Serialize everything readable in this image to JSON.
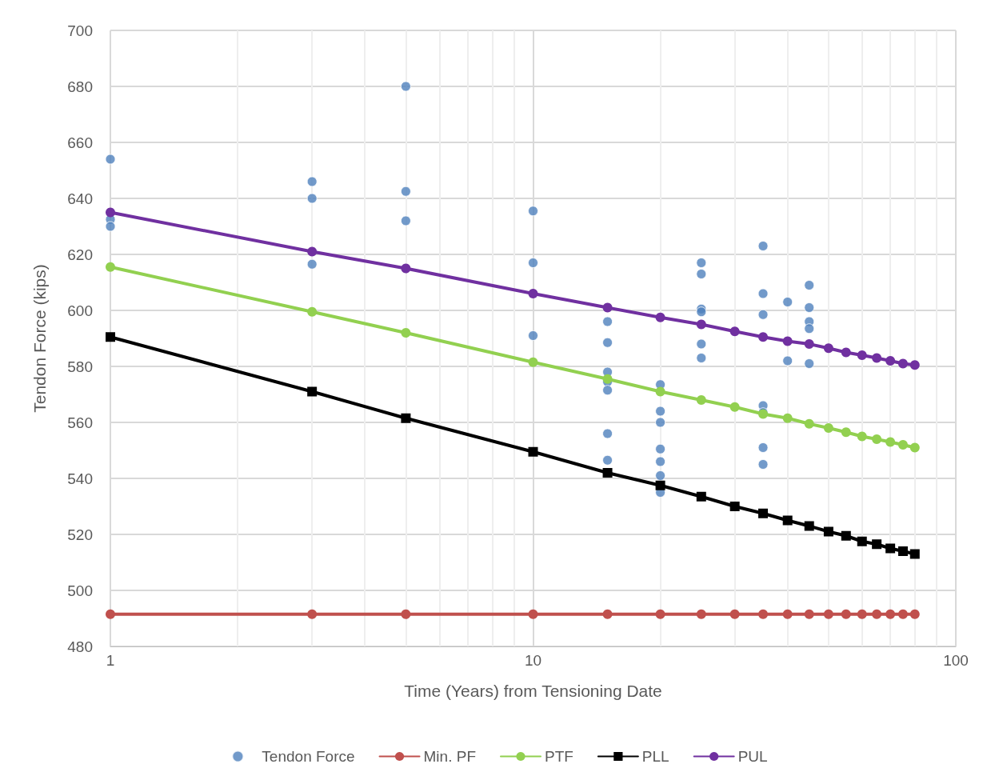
{
  "chart_data": {
    "type": "line",
    "xlabel": "Time (Years) from Tensioning Date",
    "ylabel": "Tendon Force (kips)",
    "log": "x",
    "xlim": [
      1,
      100
    ],
    "xticks": [
      1,
      10,
      100
    ],
    "ylim": [
      480,
      700
    ],
    "yticks": [
      480,
      500,
      520,
      540,
      560,
      580,
      600,
      620,
      640,
      660,
      680,
      700
    ],
    "grid": true,
    "legend": "bottom",
    "line_style": "solid",
    "x": [
      1,
      3,
      5,
      10,
      15,
      20,
      25,
      30,
      35,
      40,
      45,
      50,
      55,
      60,
      65,
      70,
      75,
      80
    ],
    "series": [
      {
        "name": "Tendon Force",
        "type": "scatter",
        "marker": "circle",
        "color": "#4f81bd",
        "x": [
          1,
          1,
          1,
          3,
          3,
          3,
          5,
          5,
          5,
          10,
          10,
          10,
          15,
          15,
          15,
          15,
          15,
          15,
          15,
          20,
          20,
          20,
          20,
          20,
          20,
          20,
          25,
          25,
          25,
          25,
          25,
          25,
          35,
          35,
          35,
          35,
          35,
          35,
          35,
          40,
          40,
          45,
          45,
          45,
          45,
          45
        ],
        "values": [
          654,
          632.5,
          630,
          646,
          640,
          616.5,
          680,
          642.5,
          632,
          635.5,
          617,
          591,
          596,
          588.5,
          578,
          574.5,
          571.5,
          556,
          546.5,
          573.5,
          564,
          560,
          550.5,
          546,
          541,
          535,
          617,
          613,
          600.5,
          599.5,
          588,
          583,
          623,
          606,
          598.5,
          566,
          563.5,
          551,
          545,
          603,
          582,
          609,
          601,
          596,
          593.5,
          581
        ]
      },
      {
        "name": "Min. PF",
        "marker": "circle",
        "color": "#c0504d",
        "values": [
          491.5,
          491.5,
          491.5,
          491.5,
          491.5,
          491.5,
          491.5,
          491.5,
          491.5,
          491.5,
          491.5,
          491.5,
          491.5,
          491.5,
          491.5,
          491.5,
          491.5,
          491.5
        ]
      },
      {
        "name": "PTF",
        "marker": "circle",
        "color": "#92d050",
        "values": [
          615.5,
          599.5,
          592,
          581.5,
          575.5,
          571,
          568,
          565.5,
          563,
          561.5,
          559.5,
          558,
          556.5,
          555,
          554,
          553,
          552,
          551
        ]
      },
      {
        "name": "PLL",
        "marker": "square",
        "color": "#000000",
        "values": [
          590.5,
          571,
          561.5,
          549.5,
          542,
          537.5,
          533.5,
          530,
          527.5,
          525,
          523,
          521,
          519.5,
          517.5,
          516.5,
          515,
          514,
          513
        ]
      },
      {
        "name": "PUL",
        "marker": "circle",
        "color": "#7030a0",
        "values": [
          635,
          621,
          615,
          606,
          601,
          597.5,
          595,
          592.5,
          590.5,
          589,
          588,
          586.5,
          585,
          584,
          583,
          582,
          581,
          580.5
        ]
      }
    ]
  }
}
